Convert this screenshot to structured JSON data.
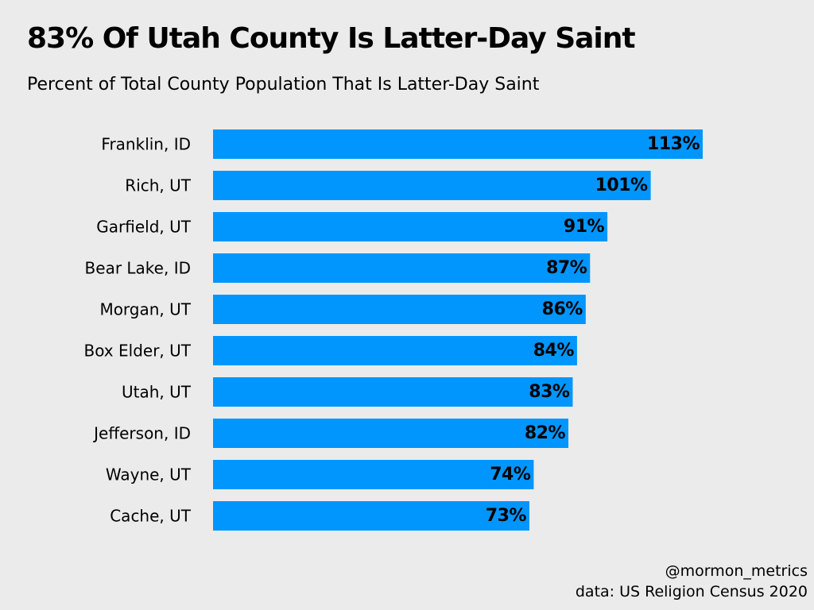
{
  "title": "83% Of Utah County Is Latter-Day Saint",
  "subtitle": "Percent of Total County Population That Is Latter-Day Saint",
  "credits": {
    "handle": "@mormon_metrics",
    "source": "data: US Religion Census 2020"
  },
  "colors": {
    "bar": "#0096fe",
    "background": "#ebebeb",
    "text": "#000000"
  },
  "chart_data": {
    "type": "bar",
    "orientation": "horizontal",
    "title": "83% Of Utah County Is Latter-Day Saint",
    "subtitle": "Percent of Total County Population That Is Latter-Day Saint",
    "xlabel": "",
    "ylabel": "",
    "xlim": [
      0,
      113
    ],
    "grid": false,
    "legend": "none",
    "value_suffix": "%",
    "categories": [
      "Franklin, ID",
      "Rich, UT",
      "Garfield, UT",
      "Bear Lake, ID",
      "Morgan, UT",
      "Box Elder, UT",
      "Utah, UT",
      "Jefferson, ID",
      "Wayne, UT",
      "Cache, UT"
    ],
    "values": [
      113,
      101,
      91,
      87,
      86,
      84,
      83,
      82,
      74,
      73
    ]
  }
}
